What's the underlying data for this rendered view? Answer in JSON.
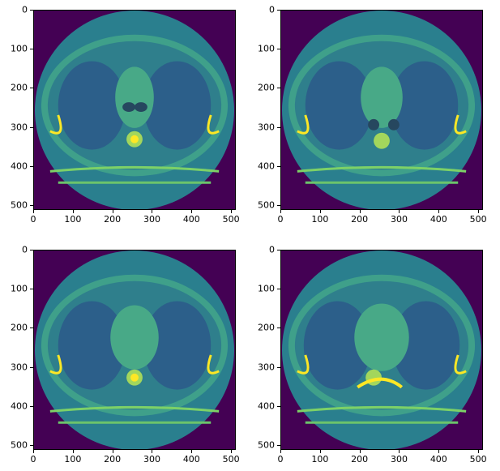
{
  "figure": {
    "panels": [
      {
        "id": "slice-1"
      },
      {
        "id": "slice-2"
      },
      {
        "id": "slice-3"
      },
      {
        "id": "slice-4"
      }
    ],
    "x_ticks": [
      "0",
      "100",
      "200",
      "300",
      "400",
      "500"
    ],
    "y_ticks": [
      "0",
      "100",
      "200",
      "300",
      "400",
      "500"
    ],
    "colormap": "viridis",
    "colors": {
      "background": "#440154",
      "body": "#2a7f8e",
      "lung": "#2c5f8a",
      "soft_tissue": "#35b779",
      "bone": "#fde725"
    }
  }
}
